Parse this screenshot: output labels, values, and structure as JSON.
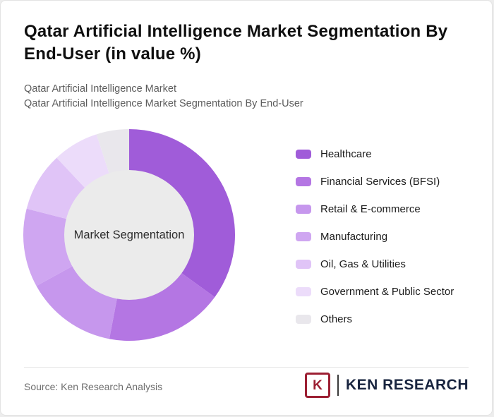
{
  "header": {
    "title": "Qatar Artificial Intelligence Market Segmentation By End-User (in value %)",
    "subtitle_line1": "Qatar Artificial Intelligence Market",
    "subtitle_line2": "Qatar Artificial Intelligence Market Segmentation By End-User"
  },
  "chart_data": {
    "type": "pie",
    "subtype": "donut",
    "title": "Qatar Artificial Intelligence Market Segmentation By End-User (in value %)",
    "center_label": "Market Segmentation",
    "categories": [
      "Healthcare",
      "Financial Services (BFSI)",
      "Retail & E-commerce",
      "Manufacturing",
      "Oil, Gas & Utilities",
      "Government & Public Sector",
      "Others"
    ],
    "values": [
      35,
      18,
      14,
      12,
      9,
      7,
      5
    ],
    "unit": "value %",
    "colors": [
      "#a05cd9",
      "#b476e3",
      "#c697ed",
      "#cfa6f1",
      "#e0c4f7",
      "#ecdcfa",
      "#e9e7ec"
    ],
    "hole_color": "#ebebeb",
    "legend_position": "right",
    "start_angle_deg": -90,
    "labels_shown": false
  },
  "footer": {
    "source": "Source: Ken Research Analysis",
    "logo": {
      "letter": "K",
      "text": "KEN RESEARCH",
      "accent_color": "#9c1f33",
      "text_color": "#18243f"
    }
  }
}
